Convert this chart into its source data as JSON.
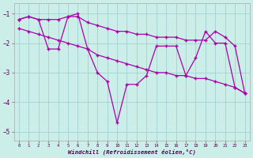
{
  "xlabel": "Windchill (Refroidissement éolien,°C)",
  "line_color": "#aa00aa",
  "background_color": "#cceee8",
  "grid_color": "#99cccc",
  "xlim_min": -0.5,
  "xlim_max": 23.5,
  "ylim_min": -5.3,
  "ylim_max": -0.65,
  "yticks": [
    -5,
    -4,
    -3,
    -2,
    -1
  ],
  "xticks": [
    0,
    1,
    2,
    3,
    4,
    5,
    6,
    7,
    8,
    9,
    10,
    11,
    12,
    13,
    14,
    15,
    16,
    17,
    18,
    19,
    20,
    21,
    22,
    23
  ],
  "series1_x": [
    0,
    1,
    2,
    3,
    4,
    5,
    6,
    7,
    8,
    9,
    10,
    11,
    12,
    13,
    14,
    15,
    16,
    17,
    18,
    19,
    20,
    21,
    22,
    23
  ],
  "series1_y": [
    -1.2,
    -1.1,
    -1.2,
    -2.2,
    -2.2,
    -1.1,
    -1.0,
    -2.2,
    -3.0,
    -3.3,
    -4.7,
    -3.4,
    -3.4,
    -3.1,
    -2.1,
    -2.1,
    -2.1,
    -3.1,
    -2.5,
    -1.6,
    -2.0,
    -2.0,
    -3.5,
    -3.7
  ],
  "series2_x": [
    0,
    1,
    2,
    3,
    4,
    5,
    6,
    7,
    8,
    9,
    10,
    11,
    12,
    13,
    14,
    15,
    16,
    17,
    18,
    19,
    20,
    21,
    22,
    23
  ],
  "series2_y": [
    -1.2,
    -1.1,
    -1.2,
    -1.2,
    -1.2,
    -1.1,
    -1.1,
    -1.3,
    -1.4,
    -1.5,
    -1.6,
    -1.6,
    -1.7,
    -1.7,
    -1.8,
    -1.8,
    -1.8,
    -1.9,
    -1.9,
    -1.9,
    -1.6,
    -1.8,
    -2.1,
    -3.7
  ],
  "series3_x": [
    0,
    1,
    2,
    3,
    4,
    5,
    6,
    7,
    8,
    9,
    10,
    11,
    12,
    13,
    14,
    15,
    16,
    17,
    18,
    19,
    20,
    21,
    22,
    23
  ],
  "series3_y": [
    -1.5,
    -1.6,
    -1.7,
    -1.8,
    -1.9,
    -2.0,
    -2.1,
    -2.2,
    -2.4,
    -2.5,
    -2.6,
    -2.7,
    -2.8,
    -2.9,
    -3.0,
    -3.0,
    -3.1,
    -3.1,
    -3.2,
    -3.2,
    -3.3,
    -3.4,
    -3.5,
    -3.7
  ]
}
